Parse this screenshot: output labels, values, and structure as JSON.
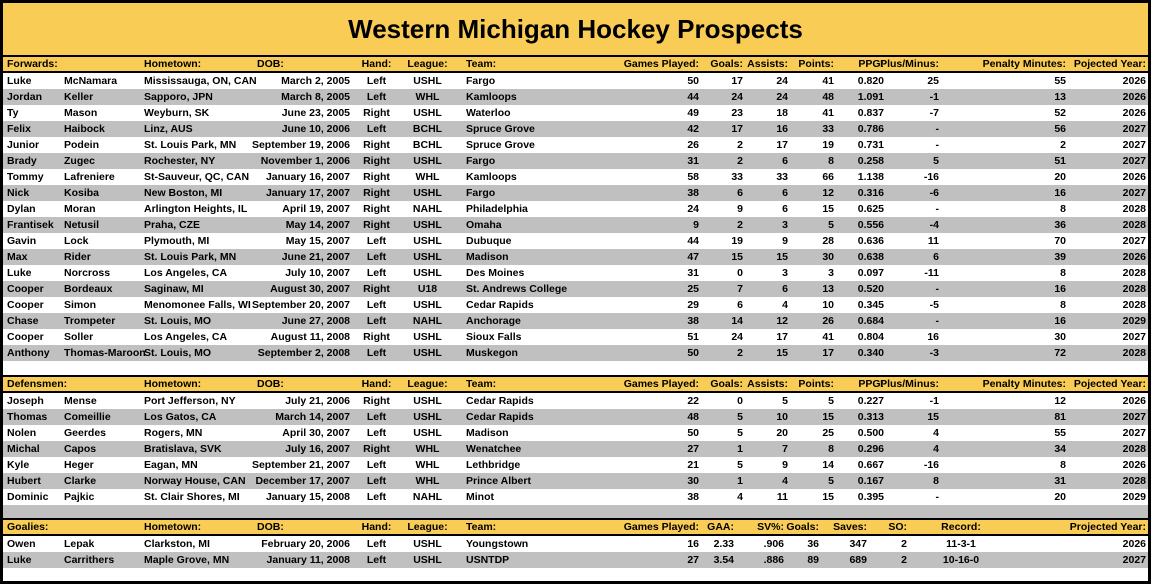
{
  "title": "Western Michigan Hockey Prospects",
  "colors": {
    "gold": "#F9CC55",
    "stripe_gray": "#C0C0C0",
    "stripe_white": "#FFFFFF",
    "text": "#000000",
    "border": "#000000"
  },
  "shared_headers": {
    "hometown": "Hometown:",
    "dob": "DOB:",
    "hand": "Hand:",
    "league": "League:",
    "team": "Team:"
  },
  "sections": [
    {
      "label": "Forwards:",
      "stat_headers": [
        "Games Played:",
        "Goals:",
        "Assists:",
        "Points:",
        "PPG:",
        "Plus/Minus:",
        "Penalty Minutes:",
        "Pojected Year:"
      ],
      "rows": [
        [
          "Luke",
          "McNamara",
          "Mississauga, ON, CAN",
          "March 2, 2005",
          "Left",
          "USHL",
          "Fargo",
          "50",
          "17",
          "24",
          "41",
          "0.820",
          "25",
          "55",
          "2026"
        ],
        [
          "Jordan",
          "Keller",
          "Sapporo, JPN",
          "March 8, 2005",
          "Left",
          "WHL",
          "Kamloops",
          "44",
          "24",
          "24",
          "48",
          "1.091",
          "-1",
          "13",
          "2026"
        ],
        [
          "Ty",
          "Mason",
          "Weyburn, SK",
          "June 23, 2005",
          "Right",
          "USHL",
          "Waterloo",
          "49",
          "23",
          "18",
          "41",
          "0.837",
          "-7",
          "52",
          "2026"
        ],
        [
          "Felix",
          "Haibock",
          "Linz, AUS",
          "June 10, 2006",
          "Left",
          "BCHL",
          "Spruce Grove",
          "42",
          "17",
          "16",
          "33",
          "0.786",
          "-",
          "56",
          "2027"
        ],
        [
          "Junior",
          "Podein",
          "St. Louis Park, MN",
          "September 19, 2006",
          "Right",
          "BCHL",
          "Spruce Grove",
          "26",
          "2",
          "17",
          "19",
          "0.731",
          "-",
          "2",
          "2027"
        ],
        [
          "Brady",
          "Zugec",
          "Rochester, NY",
          "November 1, 2006",
          "Right",
          "USHL",
          "Fargo",
          "31",
          "2",
          "6",
          "8",
          "0.258",
          "5",
          "51",
          "2027"
        ],
        [
          "Tommy",
          "Lafreniere",
          "St-Sauveur, QC, CAN",
          "January 16, 2007",
          "Right",
          "WHL",
          "Kamloops",
          "58",
          "33",
          "33",
          "66",
          "1.138",
          "-16",
          "20",
          "2026"
        ],
        [
          "Nick",
          "Kosiba",
          "New Boston, MI",
          "January 17, 2007",
          "Right",
          "USHL",
          "Fargo",
          "38",
          "6",
          "6",
          "12",
          "0.316",
          "-6",
          "16",
          "2027"
        ],
        [
          "Dylan",
          "Moran",
          "Arlington Heights, IL",
          "April 19, 2007",
          "Right",
          "NAHL",
          "Philadelphia",
          "24",
          "9",
          "6",
          "15",
          "0.625",
          "-",
          "8",
          "2028"
        ],
        [
          "Frantisek",
          "Netusil",
          "Praha, CZE",
          "May 14, 2007",
          "Right",
          "USHL",
          "Omaha",
          "9",
          "2",
          "3",
          "5",
          "0.556",
          "-4",
          "36",
          "2028"
        ],
        [
          "Gavin",
          "Lock",
          "Plymouth, MI",
          "May 15, 2007",
          "Left",
          "USHL",
          "Dubuque",
          "44",
          "19",
          "9",
          "28",
          "0.636",
          "11",
          "70",
          "2027"
        ],
        [
          "Max",
          "Rider",
          "St. Louis Park, MN",
          "June 21, 2007",
          "Left",
          "USHL",
          "Madison",
          "47",
          "15",
          "15",
          "30",
          "0.638",
          "6",
          "39",
          "2026"
        ],
        [
          "Luke",
          "Norcross",
          "Los Angeles, CA",
          "July 10, 2007",
          "Left",
          "USHL",
          "Des Moines",
          "31",
          "0",
          "3",
          "3",
          "0.097",
          "-11",
          "8",
          "2028"
        ],
        [
          "Cooper",
          "Bordeaux",
          "Saginaw, MI",
          "August 30, 2007",
          "Right",
          "U18",
          "St. Andrews College",
          "25",
          "7",
          "6",
          "13",
          "0.520",
          "-",
          "16",
          "2028"
        ],
        [
          "Cooper",
          "Simon",
          "Menomonee Falls, WI",
          "September 20, 2007",
          "Left",
          "USHL",
          "Cedar Rapids",
          "29",
          "6",
          "4",
          "10",
          "0.345",
          "-5",
          "8",
          "2028"
        ],
        [
          "Chase",
          "Trompeter",
          "St. Louis, MO",
          "June 27, 2008",
          "Left",
          "NAHL",
          "Anchorage",
          "38",
          "14",
          "12",
          "26",
          "0.684",
          "-",
          "16",
          "2029"
        ],
        [
          "Cooper",
          "Soller",
          "Los Angeles, CA",
          "August 11, 2008",
          "Right",
          "USHL",
          "Sioux Falls",
          "51",
          "24",
          "17",
          "41",
          "0.804",
          "16",
          "30",
          "2027"
        ],
        [
          "Anthony",
          "Thomas-Maroon",
          "St. Louis, MO",
          "September 2, 2008",
          "Left",
          "USHL",
          "Muskegon",
          "50",
          "2",
          "15",
          "17",
          "0.340",
          "-3",
          "72",
          "2028"
        ]
      ]
    },
    {
      "label": "Defensmen:",
      "stat_headers": [
        "Games Played:",
        "Goals:",
        "Assists:",
        "Points:",
        "PPG:",
        "Plus/Minus:",
        "Penalty Minutes:",
        "Pojected Year:"
      ],
      "rows": [
        [
          "Joseph",
          "Mense",
          "Port Jefferson, NY",
          "July 21, 2006",
          "Right",
          "USHL",
          "Cedar Rapids",
          "22",
          "0",
          "5",
          "5",
          "0.227",
          "-1",
          "12",
          "2026"
        ],
        [
          "Thomas",
          "Comeillie",
          "Los Gatos, CA",
          "March 14, 2007",
          "Left",
          "USHL",
          "Cedar Rapids",
          "48",
          "5",
          "10",
          "15",
          "0.313",
          "15",
          "81",
          "2027"
        ],
        [
          "Nolen",
          "Geerdes",
          "Rogers, MN",
          "April 30, 2007",
          "Left",
          "USHL",
          "Madison",
          "50",
          "5",
          "20",
          "25",
          "0.500",
          "4",
          "55",
          "2027"
        ],
        [
          "Michal",
          "Capos",
          "Bratislava, SVK",
          "July 16, 2007",
          "Right",
          "WHL",
          "Wenatchee",
          "27",
          "1",
          "7",
          "8",
          "0.296",
          "4",
          "34",
          "2028"
        ],
        [
          "Kyle",
          "Heger",
          "Eagan, MN",
          "September 21, 2007",
          "Left",
          "WHL",
          "Lethbridge",
          "21",
          "5",
          "9",
          "14",
          "0.667",
          "-16",
          "8",
          "2026"
        ],
        [
          "Hubert",
          "Clarke",
          "Norway House, CAN",
          "December 17, 2007",
          "Left",
          "WHL",
          "Prince Albert",
          "30",
          "1",
          "4",
          "5",
          "0.167",
          "8",
          "31",
          "2028"
        ],
        [
          "Dominic",
          "Pajkic",
          "St. Clair Shores, MI",
          "January 15, 2008",
          "Left",
          "NAHL",
          "Minot",
          "38",
          "4",
          "11",
          "15",
          "0.395",
          "-",
          "20",
          "2029"
        ]
      ]
    },
    {
      "label": "Goalies:",
      "stat_headers": [
        "Games Played:",
        "GAA:",
        "SV%:",
        "Goals:",
        "Saves:",
        "SO:",
        "Record:",
        "Projected Year:"
      ],
      "rows": [
        [
          "Owen",
          "Lepak",
          "Clarkston, MI",
          "February 20, 2006",
          "Left",
          "USHL",
          "Youngstown",
          "16",
          "2.33",
          ".906",
          "36",
          "347",
          "2",
          "11-3-1",
          "2026"
        ],
        [
          "Luke",
          "Carrithers",
          "Maple Grove, MN",
          "January 11, 2008",
          "Left",
          "USHL",
          "USNTDP",
          "27",
          "3.54",
          ".886",
          "89",
          "689",
          "2",
          "10-16-0",
          "2027"
        ]
      ]
    }
  ]
}
